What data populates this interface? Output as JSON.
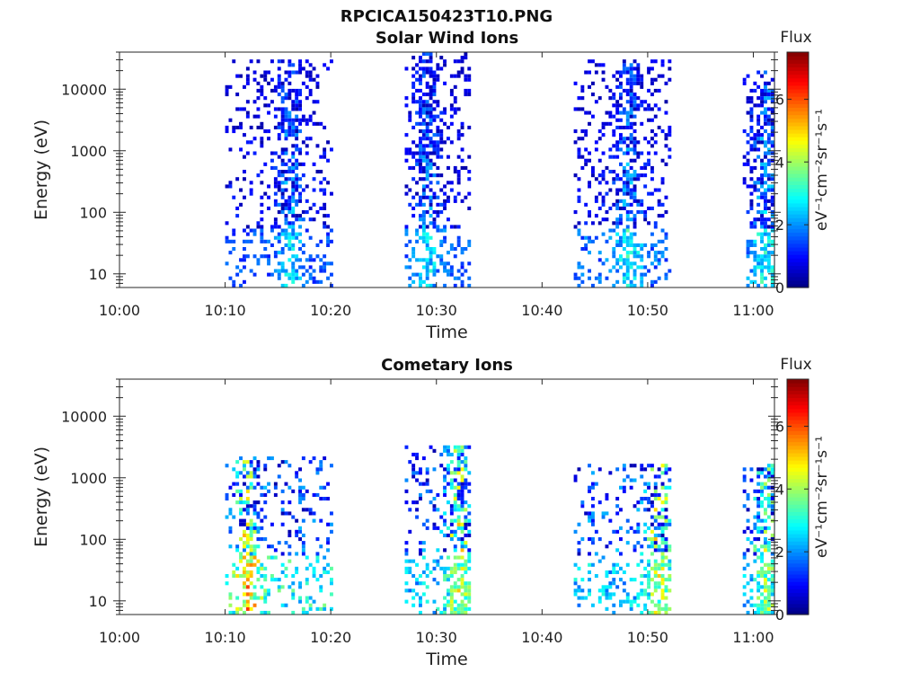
{
  "figure": {
    "title": "RPCICA150423T10.PNG"
  },
  "chart_data": [
    {
      "type": "heatmap",
      "title": "Solar Wind Ions",
      "xlabel": "Time",
      "ylabel": "Energy (eV)",
      "x_ticks": [
        "10:00",
        "10:10",
        "10:20",
        "10:30",
        "10:40",
        "10:50",
        "11:00"
      ],
      "x_range": [
        "10:00",
        "11:02"
      ],
      "y_scale": "log",
      "y_ticks": [
        "10",
        "100",
        "1000",
        "10000"
      ],
      "y_range": [
        6,
        40000
      ],
      "colorbar": {
        "title": "Flux",
        "units": "eV⁻¹cm⁻²sr⁻¹s⁻¹",
        "ticks": [
          "0",
          "2",
          "4",
          "6"
        ],
        "range": [
          0,
          7.5
        ],
        "colormap": "jet"
      },
      "bursts": [
        {
          "start": "10:10",
          "end": "10:20",
          "e_min": 6,
          "e_max": 30000,
          "core": "10:16",
          "peak_flux": 3.2,
          "low_energy_flux": 3.0
        },
        {
          "start": "10:27",
          "end": "10:33",
          "e_min": 6,
          "e_max": 35000,
          "core": "10:29",
          "peak_flux": 3.0,
          "low_energy_flux": 3.2
        },
        {
          "start": "10:43",
          "end": "10:52",
          "e_min": 6,
          "e_max": 30000,
          "core": "10:48",
          "peak_flux": 3.2,
          "low_energy_flux": 3.5
        },
        {
          "start": "10:59",
          "end": "11:02",
          "e_min": 6,
          "e_max": 20000,
          "core": "11:01",
          "peak_flux": 3.5,
          "low_energy_flux": 3.5
        }
      ]
    },
    {
      "type": "heatmap",
      "title": "Cometary Ions",
      "xlabel": "Time",
      "ylabel": "Energy (eV)",
      "x_ticks": [
        "10:00",
        "10:10",
        "10:20",
        "10:30",
        "10:40",
        "10:50",
        "11:00"
      ],
      "x_range": [
        "10:00",
        "11:02"
      ],
      "y_scale": "log",
      "y_ticks": [
        "10",
        "100",
        "1000",
        "10000"
      ],
      "y_range": [
        6,
        40000
      ],
      "colorbar": {
        "title": "Flux",
        "units": "eV⁻¹cm⁻²sr⁻¹s⁻¹",
        "ticks": [
          "0",
          "2",
          "4",
          "6"
        ],
        "range": [
          0,
          7.5
        ],
        "colormap": "jet"
      },
      "bursts": [
        {
          "start": "10:10",
          "end": "10:20",
          "e_min": 6,
          "e_max": 2000,
          "core": "10:12",
          "peak_flux": 6.5,
          "low_energy_flux": 6.0
        },
        {
          "start": "10:27",
          "end": "10:33",
          "e_min": 6,
          "e_max": 3000,
          "core": "10:32",
          "peak_flux": 6.5,
          "low_energy_flux": 5.0
        },
        {
          "start": "10:43",
          "end": "10:52",
          "e_min": 6,
          "e_max": 1500,
          "core": "10:51",
          "peak_flux": 6.8,
          "low_energy_flux": 5.0
        },
        {
          "start": "10:59",
          "end": "11:02",
          "e_min": 6,
          "e_max": 1500,
          "core": "11:01",
          "peak_flux": 6.0,
          "low_energy_flux": 4.5
        }
      ]
    }
  ]
}
